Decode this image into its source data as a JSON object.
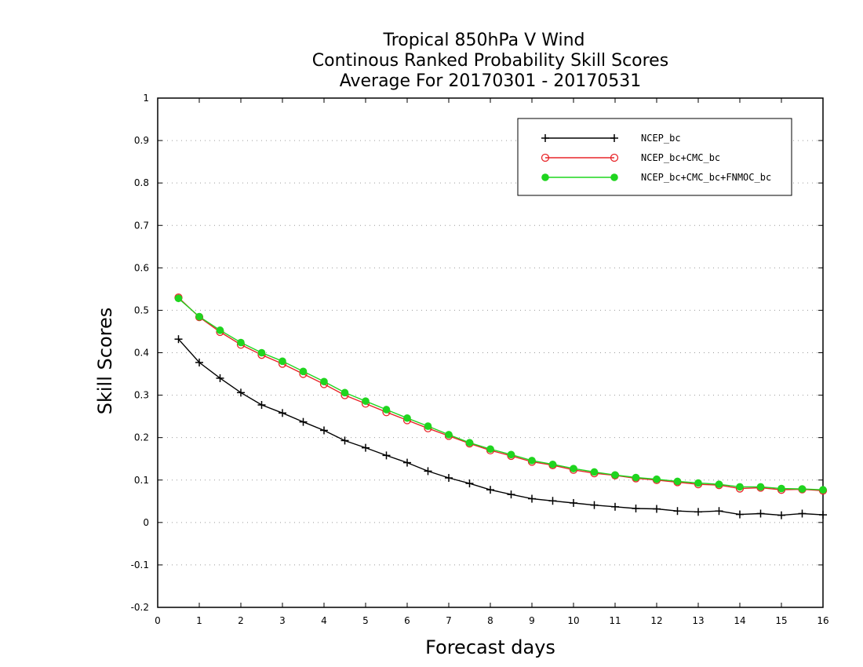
{
  "chart_data": {
    "type": "line",
    "title": [
      "Tropical 850hPa V Wind",
      "Continous Ranked Probability Skill Scores",
      "Average For 20170301 - 20170531"
    ],
    "xlabel": "Forecast days",
    "ylabel": "Skill Scores",
    "xlim": [
      0,
      16
    ],
    "ylim": [
      -0.2,
      1
    ],
    "xticks": [
      "0",
      "1",
      "2",
      "3",
      "4",
      "5",
      "6",
      "7",
      "8",
      "9",
      "10",
      "11",
      "12",
      "13",
      "14",
      "15",
      "16"
    ],
    "yticks": [
      "-0.2",
      "-0.1",
      "0",
      "0.1",
      "0.2",
      "0.3",
      "0.4",
      "0.5",
      "0.6",
      "0.7",
      "0.8",
      "0.9",
      "1"
    ],
    "grid": "horizontal-dotted",
    "legend_position": "top-right",
    "x": [
      0.5,
      1,
      1.5,
      2,
      2.5,
      3,
      3.5,
      4,
      4.5,
      5,
      5.5,
      6,
      6.5,
      7,
      7.5,
      8,
      8.5,
      9,
      9.5,
      10,
      10.5,
      11,
      11.5,
      12,
      12.5,
      13,
      13.5,
      14,
      14.5,
      15,
      15.5,
      16
    ],
    "series": [
      {
        "name": "NCEP_bc",
        "color": "#000000",
        "marker": "plus",
        "values": [
          0.432,
          0.377,
          0.34,
          0.306,
          0.277,
          0.258,
          0.237,
          0.217,
          0.193,
          0.176,
          0.158,
          0.141,
          0.121,
          0.105,
          0.092,
          0.077,
          0.066,
          0.056,
          0.051,
          0.046,
          0.041,
          0.037,
          0.033,
          0.032,
          0.027,
          0.025,
          0.027,
          0.019,
          0.021,
          0.017,
          0.021,
          0.018
        ]
      },
      {
        "name": "NCEP_bc+CMC_bc",
        "color": "#e8262a",
        "marker": "open-circle",
        "values": [
          0.53,
          0.484,
          0.449,
          0.419,
          0.395,
          0.374,
          0.35,
          0.326,
          0.3,
          0.28,
          0.26,
          0.241,
          0.222,
          0.204,
          0.186,
          0.17,
          0.157,
          0.143,
          0.135,
          0.124,
          0.116,
          0.111,
          0.104,
          0.1,
          0.095,
          0.09,
          0.088,
          0.08,
          0.082,
          0.077,
          0.078,
          0.075
        ]
      },
      {
        "name": "NCEP_bc+CMC_bc+FNMOC_bc",
        "color": "#1fd51f",
        "marker": "filled-circle",
        "values": [
          0.528,
          0.485,
          0.453,
          0.424,
          0.4,
          0.38,
          0.356,
          0.332,
          0.306,
          0.286,
          0.266,
          0.246,
          0.227,
          0.207,
          0.188,
          0.173,
          0.16,
          0.146,
          0.137,
          0.127,
          0.119,
          0.112,
          0.106,
          0.102,
          0.097,
          0.093,
          0.09,
          0.084,
          0.084,
          0.08,
          0.079,
          0.077
        ]
      }
    ]
  }
}
